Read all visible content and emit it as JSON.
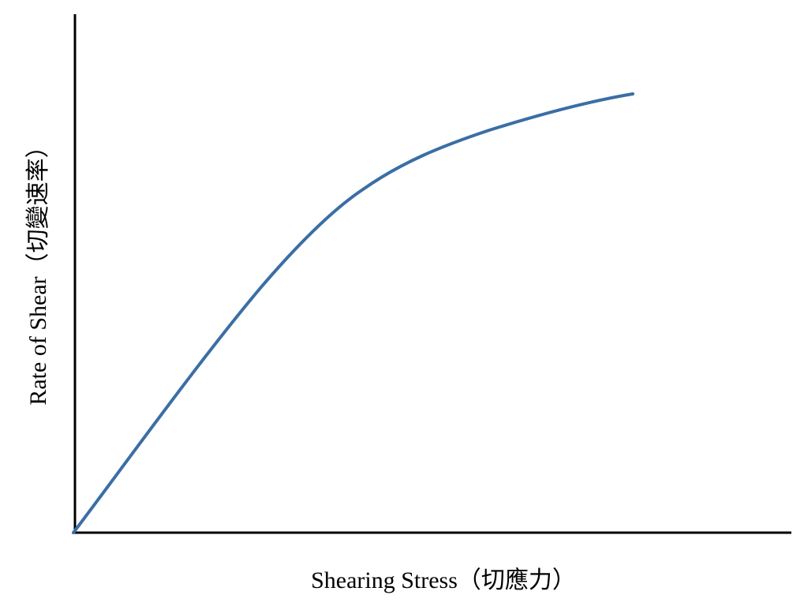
{
  "axes": {
    "x_label": "Shearing Stress（切應力）",
    "y_label": "Rate of Shear（切變速率）"
  }
}
